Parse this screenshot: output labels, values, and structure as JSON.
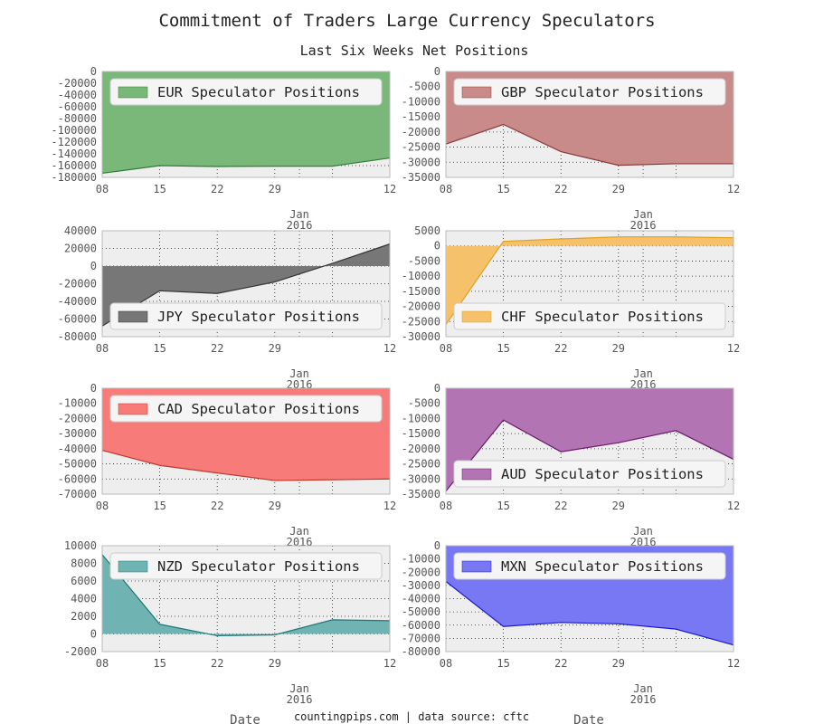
{
  "title": "Commitment of Traders Large Currency Speculators",
  "subtitle": "Last Six Weeks Net Positions",
  "footer": "countingpips.com | data source: cftc",
  "xlabel": "Date",
  "x_dates": [
    "2015-12-08",
    "2015-12-15",
    "2015-12-22",
    "2015-12-29",
    "2016-01-05",
    "2016-01-12"
  ],
  "x_ticks": [
    "08",
    "15",
    "22",
    "29",
    "",
    "12"
  ],
  "x_major": {
    "label": "Jan",
    "year": "2016"
  },
  "chart_data": [
    {
      "type": "area",
      "name": "EUR Speculator Positions",
      "color": "#7ab87a",
      "line": "#2e7d32",
      "ylim": [
        -180000,
        0
      ],
      "yticks": [
        0,
        -20000,
        -40000,
        -60000,
        -80000,
        -100000,
        -120000,
        -140000,
        -160000,
        -180000
      ],
      "values": [
        -173000,
        -160000,
        -161500,
        -161000,
        -161000,
        -147000
      ],
      "legend": "top-right"
    },
    {
      "type": "area",
      "name": "GBP Speculator Positions",
      "color": "#c98a8a",
      "line": "#8b3a3a",
      "ylim": [
        -35000,
        0
      ],
      "yticks": [
        0,
        -5000,
        -10000,
        -15000,
        -20000,
        -25000,
        -30000,
        -35000
      ],
      "values": [
        -24000,
        -17500,
        -26500,
        -31000,
        -30500,
        -30500
      ],
      "legend": "top-right"
    },
    {
      "type": "area",
      "name": "JPY Speculator Positions",
      "color": "#777777",
      "line": "#333333",
      "ylim": [
        -80000,
        40000
      ],
      "yticks": [
        40000,
        20000,
        0,
        -20000,
        -40000,
        -60000,
        -80000
      ],
      "values": [
        -68000,
        -28000,
        -31000,
        -18000,
        3000,
        25000
      ],
      "legend": "bottom-right"
    },
    {
      "type": "area",
      "name": "CHF Speculator Positions",
      "color": "#f5c16b",
      "line": "#e0a020",
      "ylim": [
        -30000,
        5000
      ],
      "yticks": [
        5000,
        0,
        -5000,
        -10000,
        -15000,
        -20000,
        -25000,
        -30000
      ],
      "values": [
        -26000,
        1500,
        2300,
        3000,
        3000,
        2700
      ],
      "legend": "bottom-right"
    },
    {
      "type": "area",
      "name": "CAD Speculator Positions",
      "color": "#f77b78",
      "line": "#c0392b",
      "ylim": [
        -70000,
        0
      ],
      "yticks": [
        0,
        -10000,
        -20000,
        -30000,
        -40000,
        -50000,
        -60000,
        -70000
      ],
      "values": [
        -41000,
        -51000,
        -56000,
        -61000,
        -60500,
        -60000
      ],
      "legend": "top-right"
    },
    {
      "type": "area",
      "name": "AUD Speculator Positions",
      "color": "#b374b3",
      "line": "#6a1b6a",
      "ylim": [
        -35000,
        0
      ],
      "yticks": [
        0,
        -5000,
        -10000,
        -15000,
        -20000,
        -25000,
        -30000,
        -35000
      ],
      "values": [
        -34000,
        -10500,
        -21000,
        -18000,
        -14000,
        -23500
      ],
      "legend": "bottom-right"
    },
    {
      "type": "area",
      "name": "NZD Speculator Positions",
      "color": "#6fb3b3",
      "line": "#1f7a7a",
      "ylim": [
        -2000,
        10000
      ],
      "yticks": [
        10000,
        8000,
        6000,
        4000,
        2000,
        0,
        -2000
      ],
      "values": [
        9000,
        1100,
        -200,
        -100,
        1600,
        1500
      ],
      "legend": "top-right"
    },
    {
      "type": "area",
      "name": "MXN Speculator Positions",
      "color": "#7878f5",
      "line": "#1a1acc",
      "ylim": [
        -80000,
        0
      ],
      "yticks": [
        0,
        -10000,
        -20000,
        -30000,
        -40000,
        -50000,
        -60000,
        -70000,
        -80000
      ],
      "values": [
        -27000,
        -61000,
        -58000,
        -59000,
        -63000,
        -75000
      ],
      "legend": "top-right"
    }
  ]
}
